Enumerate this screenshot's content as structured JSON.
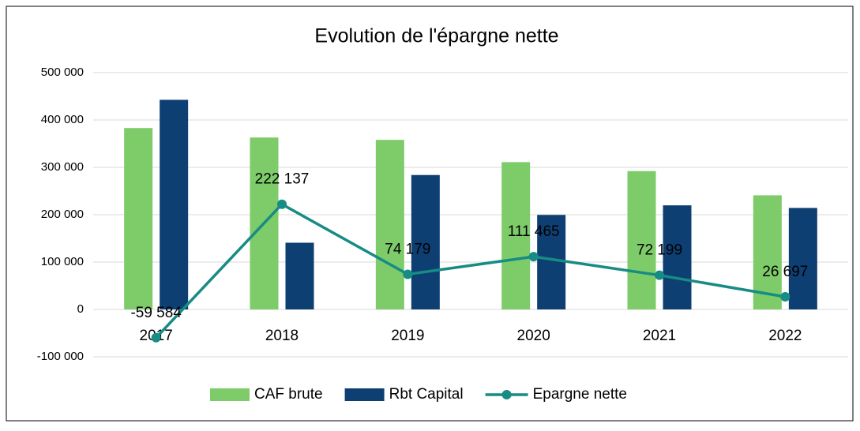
{
  "chart_data": {
    "type": "bar_line",
    "title": "Evolution de l'épargne nette",
    "categories": [
      "2017",
      "2018",
      "2019",
      "2020",
      "2021",
      "2022"
    ],
    "series": [
      {
        "name": "CAF brute",
        "type": "bar",
        "color": "#7ecb69",
        "values": [
          383000,
          363000,
          358000,
          311000,
          292000,
          241000
        ]
      },
      {
        "name": "Rbt Capital",
        "type": "bar",
        "color": "#0e3f73",
        "values": [
          442584,
          140863,
          283821,
          199535,
          219801,
          214303
        ]
      },
      {
        "name": "Epargne nette",
        "type": "line",
        "color": "#178c84",
        "values": [
          -59584,
          222137,
          74179,
          111465,
          72199,
          26697
        ],
        "value_labels": [
          "-59 584",
          "222 137",
          "74 179",
          "111 465",
          "72 199",
          "26 697"
        ]
      }
    ],
    "ylim": [
      -100000,
      500000
    ],
    "yticks": [
      {
        "value": -100000,
        "label": "-100 000"
      },
      0,
      {
        "value": 100000,
        "label": "100 000"
      },
      {
        "value": 200000,
        "label": "200 000"
      },
      {
        "value": 300000,
        "label": "300 000"
      },
      {
        "value": 400000,
        "label": "400 000"
      },
      {
        "value": 500000,
        "label": "500 000"
      }
    ],
    "grid": true,
    "legend": "bottom"
  }
}
